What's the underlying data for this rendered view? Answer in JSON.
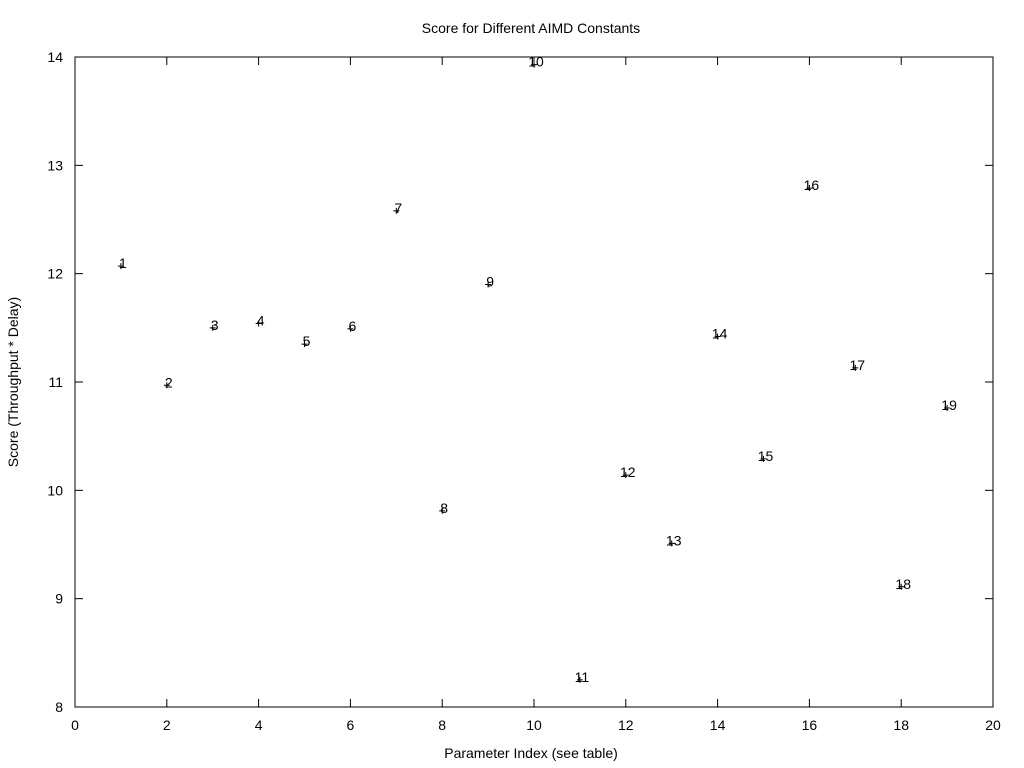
{
  "chart_data": {
    "type": "scatter",
    "title": "Score for Different AIMD Constants",
    "xlabel": "Parameter Index (see table)",
    "ylabel": "Score (Throughput * Delay)",
    "xlim": [
      0,
      20
    ],
    "ylim": [
      8,
      14
    ],
    "xticks": [
      0,
      2,
      4,
      6,
      8,
      10,
      12,
      14,
      16,
      18,
      20
    ],
    "yticks": [
      8,
      9,
      10,
      11,
      12,
      13,
      14
    ],
    "grid": false,
    "marker": "+",
    "points": [
      {
        "x": 1,
        "y": 12.07,
        "label": "1"
      },
      {
        "x": 2,
        "y": 10.97,
        "label": "2"
      },
      {
        "x": 3,
        "y": 11.5,
        "label": "3"
      },
      {
        "x": 4,
        "y": 11.54,
        "label": "4"
      },
      {
        "x": 5,
        "y": 11.35,
        "label": "5"
      },
      {
        "x": 6,
        "y": 11.49,
        "label": "6"
      },
      {
        "x": 7,
        "y": 12.58,
        "label": "7"
      },
      {
        "x": 8,
        "y": 9.81,
        "label": "8"
      },
      {
        "x": 9,
        "y": 11.9,
        "label": "9"
      },
      {
        "x": 10,
        "y": 13.93,
        "label": "10"
      },
      {
        "x": 11,
        "y": 8.25,
        "label": "11"
      },
      {
        "x": 12,
        "y": 10.14,
        "label": "12"
      },
      {
        "x": 13,
        "y": 9.51,
        "label": "13"
      },
      {
        "x": 14,
        "y": 11.42,
        "label": "14"
      },
      {
        "x": 15,
        "y": 10.29,
        "label": "15"
      },
      {
        "x": 16,
        "y": 12.79,
        "label": "16"
      },
      {
        "x": 17,
        "y": 11.13,
        "label": "17"
      },
      {
        "x": 18,
        "y": 9.11,
        "label": "18"
      },
      {
        "x": 19,
        "y": 10.76,
        "label": "19"
      }
    ]
  }
}
